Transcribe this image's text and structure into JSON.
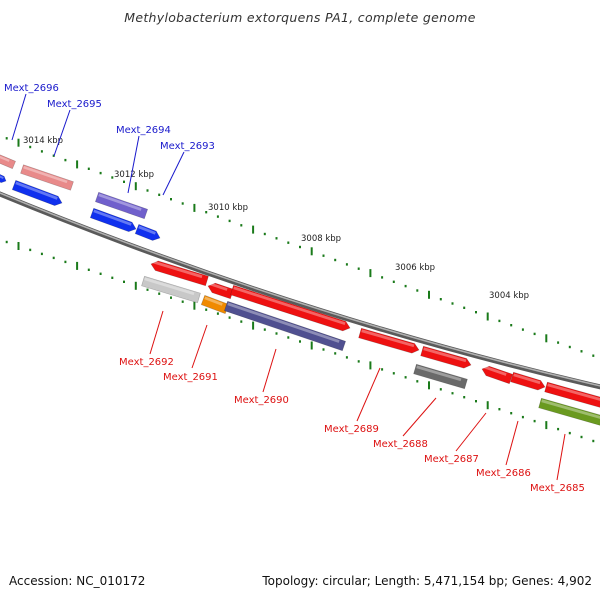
{
  "title": "Methylobacterium extorquens PA1, complete genome",
  "footer": {
    "accession": "Accession: NC_010172",
    "summary": "Topology: circular; Length: 5,471,154 bp; Genes: 4,902"
  },
  "colors": {
    "backbone": "#8a8a8a",
    "tick": "#1a7a1a",
    "top_label": "#1a1acc",
    "bottom_label": "#dd1111",
    "red": "#ee1111",
    "pink": "#e88a8a",
    "blue": "#1030ee",
    "slate": "#7060cc",
    "navy": "#505090",
    "grey": "#6a6a6a",
    "light_grey": "#c8c8c8",
    "orange": "#f08a00",
    "olive": "#6a9a20"
  },
  "ruler_labels": [
    "3014 kbp",
    "3012 kbp",
    "3010 kbp",
    "3008 kbp",
    "3006 kbp",
    "3004 kbp"
  ],
  "top_genes": [
    "Mext_2696",
    "Mext_2695",
    "Mext_2694",
    "Mext_2693"
  ],
  "bottom_genes": [
    "Mext_2692",
    "Mext_2691",
    "Mext_2690",
    "Mext_2689",
    "Mext_2688",
    "Mext_2687",
    "Mext_2686",
    "Mext_2685"
  ]
}
